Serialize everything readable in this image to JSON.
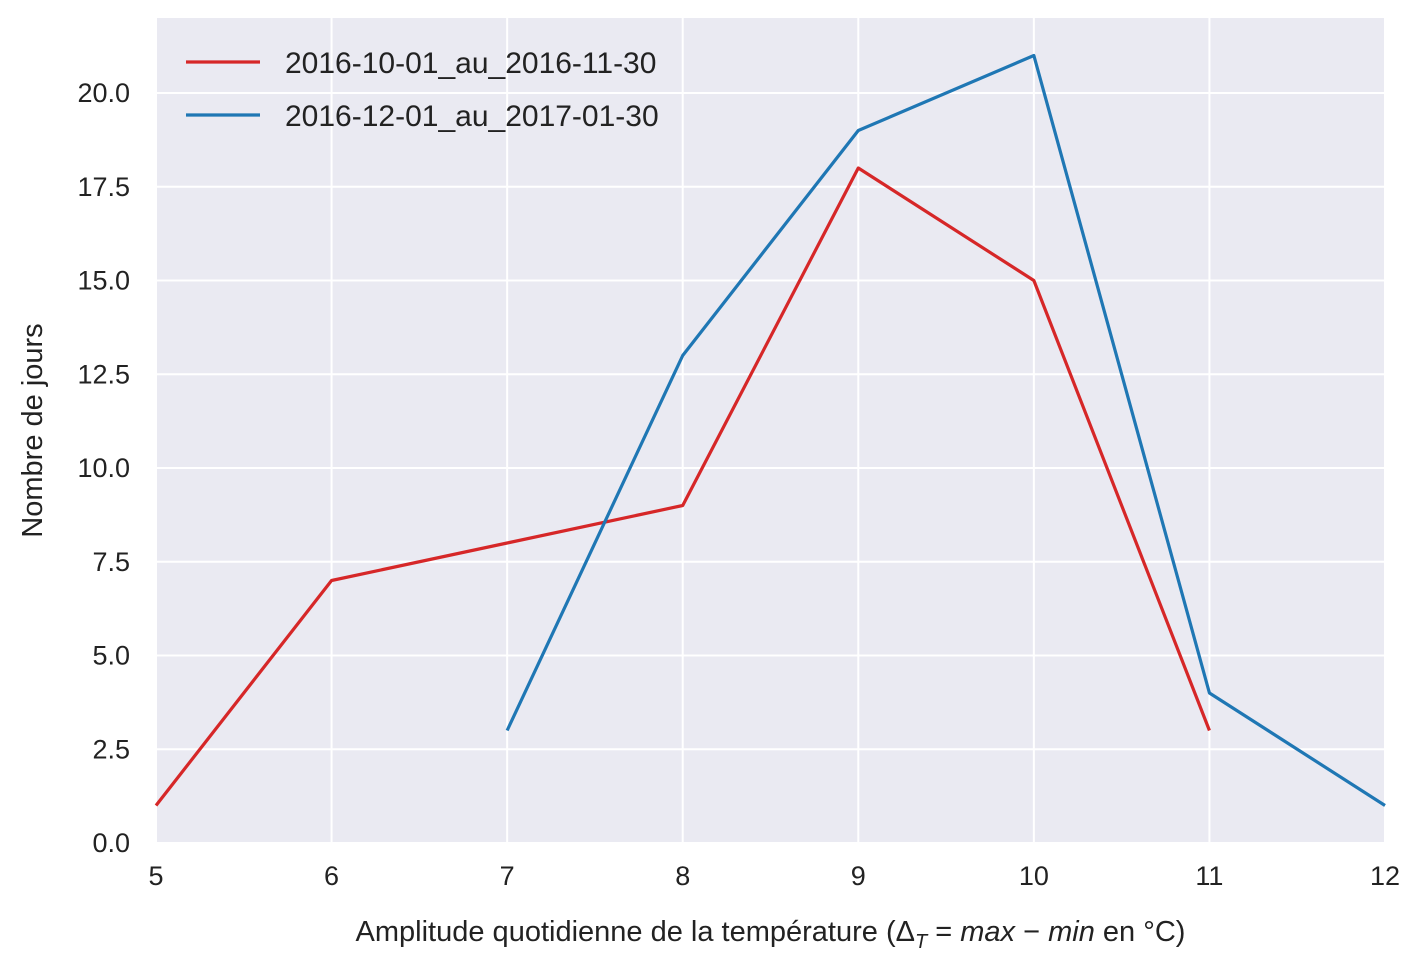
{
  "chart_data": {
    "type": "line",
    "title": "",
    "xlabel": {
      "prefix": "Amplitude quotidienne de la température (",
      "delta": "Δ",
      "delta_sub": "T",
      "equals": " = ",
      "max": "max",
      "minus": " − ",
      "min": "min",
      "suffix": " en °C)"
    },
    "ylabel": "Nombre de jours",
    "xlim": [
      5,
      12
    ],
    "ylim": [
      0,
      22
    ],
    "xticks": [
      5,
      6,
      7,
      8,
      9,
      10,
      11,
      12
    ],
    "yticks": [
      0,
      2.5,
      5,
      7.5,
      10,
      12.5,
      15,
      17.5,
      20
    ],
    "ytick_labels": [
      "0.0",
      "2.5",
      "5.0",
      "7.5",
      "10.0",
      "12.5",
      "15.0",
      "17.5",
      "20.0"
    ],
    "grid": true,
    "legend_position": "upper-left",
    "series": [
      {
        "name": "2016-10-01_au_2016-11-30",
        "color": "#d62728",
        "x": [
          5,
          6,
          7,
          8,
          9,
          10,
          11
        ],
        "y": [
          1,
          7,
          8,
          9,
          18,
          15,
          3
        ]
      },
      {
        "name": "2016-12-01_au_2017-01-30",
        "color": "#1f77b4",
        "x": [
          7,
          8,
          9,
          10,
          11,
          12
        ],
        "y": [
          3,
          13,
          19,
          21,
          4,
          1
        ]
      }
    ]
  },
  "colors": {
    "plot_background": "#eaeaf2",
    "grid": "#ffffff",
    "text": "#222222"
  }
}
